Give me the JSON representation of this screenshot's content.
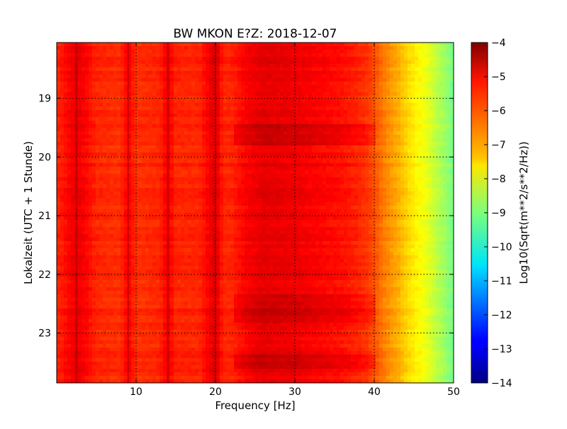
{
  "chart_data": {
    "type": "heatmap",
    "title": "BW MKON E?Z: 2018-12-07",
    "xlabel": "Frequency [Hz]",
    "ylabel": "Lokalzeit (UTC + 1 Stunde)",
    "xlim": [
      0,
      50
    ],
    "ylim": [
      18.05,
      23.85
    ],
    "y_inverted": true,
    "x_ticks": [
      10,
      20,
      30,
      40,
      50
    ],
    "y_ticks": [
      19,
      20,
      21,
      22,
      23
    ],
    "grid": true,
    "colormap": "jet",
    "colorbar": {
      "label": "Log10(Sqrt(m**2/s**2/Hz))",
      "min": -14,
      "max": -4,
      "ticks": [
        -4,
        -5,
        -6,
        -7,
        -8,
        -9,
        -10,
        -11,
        -12,
        -13,
        -14
      ]
    },
    "frequency_profile": {
      "frequency_hz": [
        0,
        1,
        2.5,
        5,
        8,
        9,
        10,
        13,
        14,
        15,
        18,
        20,
        21,
        22,
        24,
        26,
        28,
        30,
        32,
        34,
        36,
        38,
        39,
        40,
        41,
        42,
        43,
        44,
        45,
        46,
        47,
        48,
        49,
        50
      ],
      "log10_amplitude": [
        -5.6,
        -5.4,
        -5.0,
        -5.6,
        -5.7,
        -5.2,
        -5.7,
        -5.6,
        -5.1,
        -5.6,
        -5.6,
        -4.9,
        -5.6,
        -5.6,
        -5.2,
        -5.0,
        -5.05,
        -5.1,
        -5.2,
        -5.3,
        -5.4,
        -5.6,
        -5.75,
        -6.0,
        -6.4,
        -6.7,
        -6.95,
        -7.3,
        -7.6,
        -7.8,
        -8.1,
        -8.45,
        -8.75,
        -9.1
      ]
    },
    "line_frequencies_hz": [
      2.5,
      9,
      14,
      20
    ],
    "strong_periods_h": [
      [
        19.4,
        19.75
      ],
      [
        22.3,
        22.8
      ],
      [
        23.35,
        23.55
      ]
    ]
  }
}
